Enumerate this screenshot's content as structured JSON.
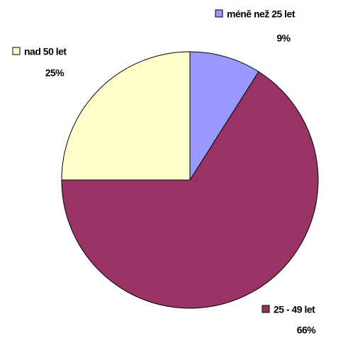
{
  "chart_data": {
    "type": "pie",
    "categories": [
      "méně než 25 let",
      "25 - 49 let",
      "nad 50 let"
    ],
    "values": [
      9,
      66,
      25
    ],
    "value_labels": [
      "9%",
      "66%",
      "25%"
    ],
    "colors": [
      "#9999ff",
      "#993366",
      "#ffffcc"
    ]
  }
}
